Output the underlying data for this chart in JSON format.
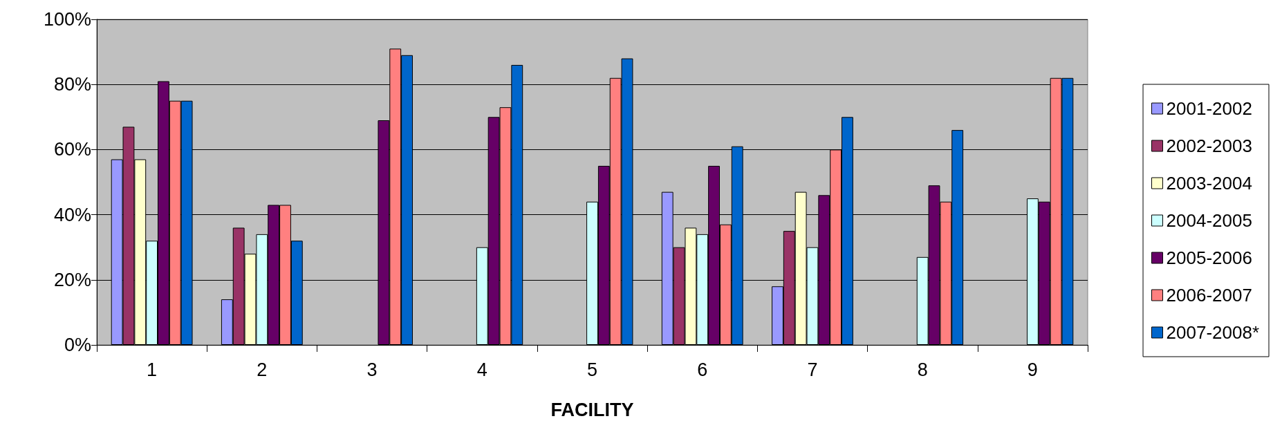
{
  "chart_data": {
    "type": "bar",
    "xlabel": "FACILITY",
    "categories": [
      "1",
      "2",
      "3",
      "4",
      "5",
      "6",
      "7",
      "8",
      "9"
    ],
    "ylim": [
      0,
      100
    ],
    "yticks": [
      {
        "value": 0,
        "label": "0%"
      },
      {
        "value": 20,
        "label": "20%"
      },
      {
        "value": 40,
        "label": "40%"
      },
      {
        "value": 60,
        "label": "60%"
      },
      {
        "value": 80,
        "label": "80%"
      },
      {
        "value": 100,
        "label": "100%"
      }
    ],
    "grid": "y",
    "legend": "right",
    "series": [
      {
        "name": "2001-2002",
        "color": "#9999ff",
        "values": [
          57,
          14,
          null,
          null,
          null,
          47,
          18,
          null,
          null
        ]
      },
      {
        "name": "2002-2003",
        "color": "#993366",
        "values": [
          67,
          36,
          null,
          null,
          null,
          30,
          35,
          null,
          null
        ]
      },
      {
        "name": "2003-2004",
        "color": "#ffffcc",
        "values": [
          57,
          28,
          null,
          null,
          null,
          36,
          47,
          null,
          null
        ]
      },
      {
        "name": "2004-2005",
        "color": "#ccffff",
        "values": [
          32,
          34,
          null,
          30,
          44,
          34,
          30,
          27,
          45
        ]
      },
      {
        "name": "2005-2006",
        "color": "#660066",
        "values": [
          81,
          43,
          69,
          70,
          55,
          55,
          46,
          49,
          44
        ]
      },
      {
        "name": "2006-2007",
        "color": "#ff8080",
        "values": [
          75,
          43,
          91,
          73,
          82,
          37,
          60,
          44,
          82
        ]
      },
      {
        "name": "2007-2008*",
        "color": "#0066cc",
        "values": [
          75,
          32,
          89,
          86,
          88,
          61,
          70,
          66,
          82
        ]
      }
    ]
  }
}
